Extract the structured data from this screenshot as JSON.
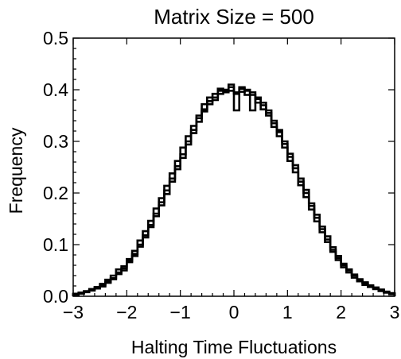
{
  "chart_data": {
    "type": "line",
    "title": "Matrix Size = 500",
    "xlabel": "Halting Time Fluctuations",
    "ylabel": "Frequency",
    "xlim": [
      -3,
      3
    ],
    "ylim": [
      0,
      0.5
    ],
    "xticks": [
      -3,
      -2,
      -1,
      0,
      1,
      2,
      3
    ],
    "yticks": [
      0.0,
      0.1,
      0.2,
      0.3,
      0.4,
      0.5
    ],
    "ytick_labels": [
      "0.0",
      "0.1",
      "0.2",
      "0.3",
      "0.4",
      "0.5"
    ],
    "xtick_labels": [
      "−3",
      "−2",
      "−1",
      "0",
      "1",
      "2",
      "3"
    ],
    "grid": false,
    "legend": "none",
    "line_color": "#000000",
    "series": [
      {
        "values": [
          [
            -3.0,
            0.004
          ],
          [
            -2.9,
            0.006
          ],
          [
            -2.8,
            0.009
          ],
          [
            -2.7,
            0.012
          ],
          [
            -2.6,
            0.016
          ],
          [
            -2.5,
            0.021
          ],
          [
            -2.4,
            0.028
          ],
          [
            -2.3,
            0.035
          ],
          [
            -2.2,
            0.046
          ],
          [
            -2.1,
            0.058
          ],
          [
            -2.0,
            0.066
          ],
          [
            -1.9,
            0.082
          ],
          [
            -1.8,
            0.1
          ],
          [
            -1.7,
            0.118
          ],
          [
            -1.6,
            0.138
          ],
          [
            -1.5,
            0.16
          ],
          [
            -1.4,
            0.182
          ],
          [
            -1.3,
            0.205
          ],
          [
            -1.2,
            0.228
          ],
          [
            -1.1,
            0.252
          ],
          [
            -1.0,
            0.275
          ],
          [
            -0.9,
            0.3
          ],
          [
            -0.8,
            0.322
          ],
          [
            -0.7,
            0.345
          ],
          [
            -0.6,
            0.362
          ],
          [
            -0.5,
            0.378
          ],
          [
            -0.4,
            0.385
          ],
          [
            -0.3,
            0.398
          ],
          [
            -0.2,
            0.4
          ],
          [
            -0.1,
            0.405
          ],
          [
            0.0,
            0.36
          ],
          [
            0.1,
            0.402
          ],
          [
            0.2,
            0.398
          ],
          [
            0.3,
            0.39
          ],
          [
            0.4,
            0.382
          ],
          [
            0.5,
            0.37
          ],
          [
            0.6,
            0.355
          ],
          [
            0.7,
            0.335
          ],
          [
            0.8,
            0.318
          ],
          [
            0.9,
            0.295
          ],
          [
            1.0,
            0.27
          ],
          [
            1.1,
            0.248
          ],
          [
            1.2,
            0.222
          ],
          [
            1.3,
            0.2
          ],
          [
            1.4,
            0.175
          ],
          [
            1.5,
            0.152
          ],
          [
            1.6,
            0.13
          ],
          [
            1.7,
            0.11
          ],
          [
            1.8,
            0.09
          ],
          [
            1.9,
            0.074
          ],
          [
            2.0,
            0.06
          ],
          [
            2.1,
            0.05
          ],
          [
            2.2,
            0.04
          ],
          [
            2.3,
            0.031
          ],
          [
            2.4,
            0.025
          ],
          [
            2.5,
            0.02
          ],
          [
            2.6,
            0.016
          ],
          [
            2.7,
            0.012
          ],
          [
            2.8,
            0.008
          ],
          [
            2.9,
            0.005
          ]
        ]
      },
      {
        "values": [
          [
            -3.0,
            0.005
          ],
          [
            -2.9,
            0.007
          ],
          [
            -2.8,
            0.01
          ],
          [
            -2.7,
            0.014
          ],
          [
            -2.6,
            0.018
          ],
          [
            -2.5,
            0.024
          ],
          [
            -2.4,
            0.032
          ],
          [
            -2.3,
            0.04
          ],
          [
            -2.2,
            0.052
          ],
          [
            -2.1,
            0.05
          ],
          [
            -2.0,
            0.072
          ],
          [
            -1.9,
            0.088
          ],
          [
            -1.8,
            0.108
          ],
          [
            -1.7,
            0.126
          ],
          [
            -1.6,
            0.146
          ],
          [
            -1.5,
            0.17
          ],
          [
            -1.4,
            0.19
          ],
          [
            -1.3,
            0.214
          ],
          [
            -1.2,
            0.238
          ],
          [
            -1.1,
            0.262
          ],
          [
            -1.0,
            0.288
          ],
          [
            -0.9,
            0.31
          ],
          [
            -0.8,
            0.33
          ],
          [
            -0.7,
            0.35
          ],
          [
            -0.6,
            0.372
          ],
          [
            -0.5,
            0.385
          ],
          [
            -0.4,
            0.392
          ],
          [
            -0.3,
            0.402
          ],
          [
            -0.2,
            0.398
          ],
          [
            -0.1,
            0.41
          ],
          [
            0.0,
            0.395
          ],
          [
            0.1,
            0.405
          ],
          [
            0.2,
            0.39
          ],
          [
            0.3,
            0.395
          ],
          [
            0.4,
            0.375
          ],
          [
            0.5,
            0.362
          ],
          [
            0.6,
            0.35
          ],
          [
            0.7,
            0.328
          ],
          [
            0.8,
            0.31
          ],
          [
            0.9,
            0.288
          ],
          [
            1.0,
            0.262
          ],
          [
            1.1,
            0.24
          ],
          [
            1.2,
            0.215
          ],
          [
            1.3,
            0.192
          ],
          [
            1.4,
            0.168
          ],
          [
            1.5,
            0.145
          ],
          [
            1.6,
            0.124
          ],
          [
            1.7,
            0.105
          ],
          [
            1.8,
            0.086
          ],
          [
            1.9,
            0.07
          ],
          [
            2.0,
            0.056
          ],
          [
            2.1,
            0.046
          ],
          [
            2.2,
            0.036
          ],
          [
            2.3,
            0.029
          ],
          [
            2.4,
            0.022
          ],
          [
            2.5,
            0.018
          ],
          [
            2.6,
            0.014
          ],
          [
            2.7,
            0.01
          ],
          [
            2.8,
            0.007
          ],
          [
            2.9,
            0.004
          ]
        ]
      },
      {
        "values": [
          [
            -3.0,
            0.003
          ],
          [
            -2.9,
            0.005
          ],
          [
            -2.8,
            0.008
          ],
          [
            -2.7,
            0.011
          ],
          [
            -2.6,
            0.015
          ],
          [
            -2.5,
            0.019
          ],
          [
            -2.4,
            0.026
          ],
          [
            -2.3,
            0.033
          ],
          [
            -2.2,
            0.043
          ],
          [
            -2.1,
            0.054
          ],
          [
            -2.0,
            0.068
          ],
          [
            -1.9,
            0.078
          ],
          [
            -1.8,
            0.096
          ],
          [
            -1.7,
            0.114
          ],
          [
            -1.6,
            0.134
          ],
          [
            -1.5,
            0.155
          ],
          [
            -1.4,
            0.176
          ],
          [
            -1.3,
            0.198
          ],
          [
            -1.2,
            0.222
          ],
          [
            -1.1,
            0.246
          ],
          [
            -1.0,
            0.268
          ],
          [
            -0.9,
            0.294
          ],
          [
            -0.8,
            0.316
          ],
          [
            -0.7,
            0.338
          ],
          [
            -0.6,
            0.358
          ],
          [
            -0.5,
            0.372
          ],
          [
            -0.4,
            0.38
          ],
          [
            -0.3,
            0.392
          ],
          [
            -0.2,
            0.395
          ],
          [
            -0.1,
            0.398
          ],
          [
            0.0,
            0.392
          ],
          [
            0.1,
            0.396
          ],
          [
            0.2,
            0.4
          ],
          [
            0.3,
            0.36
          ],
          [
            0.4,
            0.385
          ],
          [
            0.5,
            0.375
          ],
          [
            0.6,
            0.36
          ],
          [
            0.7,
            0.34
          ],
          [
            0.8,
            0.322
          ],
          [
            0.9,
            0.3
          ],
          [
            1.0,
            0.276
          ],
          [
            1.1,
            0.254
          ],
          [
            1.2,
            0.228
          ],
          [
            1.3,
            0.206
          ],
          [
            1.4,
            0.18
          ],
          [
            1.5,
            0.158
          ],
          [
            1.6,
            0.135
          ],
          [
            1.7,
            0.116
          ],
          [
            1.8,
            0.095
          ],
          [
            1.9,
            0.078
          ],
          [
            2.0,
            0.063
          ],
          [
            2.1,
            0.052
          ],
          [
            2.2,
            0.042
          ],
          [
            2.3,
            0.033
          ],
          [
            2.4,
            0.027
          ],
          [
            2.5,
            0.021
          ],
          [
            2.6,
            0.017
          ],
          [
            2.7,
            0.013
          ],
          [
            2.8,
            0.009
          ],
          [
            2.9,
            0.006
          ]
        ]
      }
    ]
  }
}
